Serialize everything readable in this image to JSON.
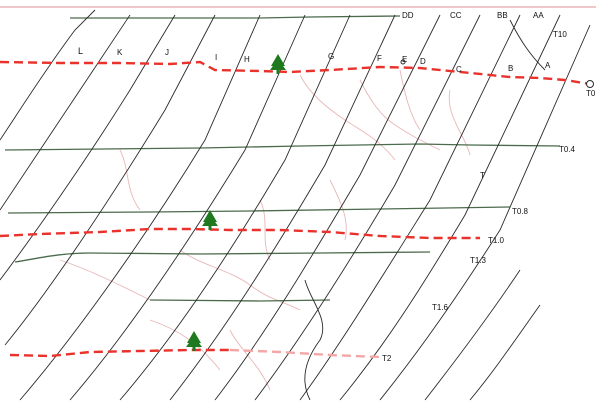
{
  "colors": {
    "background": "#ffffff",
    "frame_top": "#e7b5b5",
    "grid_line": "#2a2a2a",
    "contour_line": "#4c6b4c",
    "trail_red": "#e8322b",
    "trail_pink": "#f4a6a6",
    "stream_pink": "#e9b7b7",
    "tree_green": "#1f7a1f"
  },
  "markers": {
    "tree_icon": "tree-icon",
    "point_marker": "circle-marker-icon"
  },
  "route_labels": [
    {
      "id": "L",
      "text": "L"
    },
    {
      "id": "K",
      "text": "K"
    },
    {
      "id": "J",
      "text": "J"
    },
    {
      "id": "I",
      "text": "I"
    },
    {
      "id": "H",
      "text": "H"
    },
    {
      "id": "G",
      "text": "G"
    },
    {
      "id": "F",
      "text": "F"
    },
    {
      "id": "E",
      "text": "E"
    },
    {
      "id": "D",
      "text": "D"
    },
    {
      "id": "C",
      "text": "C"
    },
    {
      "id": "B",
      "text": "B"
    },
    {
      "id": "A",
      "text": "A"
    }
  ],
  "top_labels": [
    {
      "id": "DD",
      "text": "DD"
    },
    {
      "id": "CC",
      "text": "CC"
    },
    {
      "id": "BB",
      "text": "BB"
    },
    {
      "id": "AA",
      "text": "AA"
    }
  ],
  "level_labels": [
    {
      "id": "T10",
      "text": "T10"
    },
    {
      "id": "T0",
      "text": "T0"
    },
    {
      "id": "T0.4",
      "text": "T0.4"
    },
    {
      "id": "T0.8",
      "text": "T0.8"
    },
    {
      "id": "T1.0",
      "text": "T1.0"
    },
    {
      "id": "T1.3",
      "text": "T1.3"
    },
    {
      "id": "T1.6",
      "text": "T1.6"
    },
    {
      "id": "T2",
      "text": "T2"
    },
    {
      "id": "T-small",
      "text": "T"
    }
  ]
}
